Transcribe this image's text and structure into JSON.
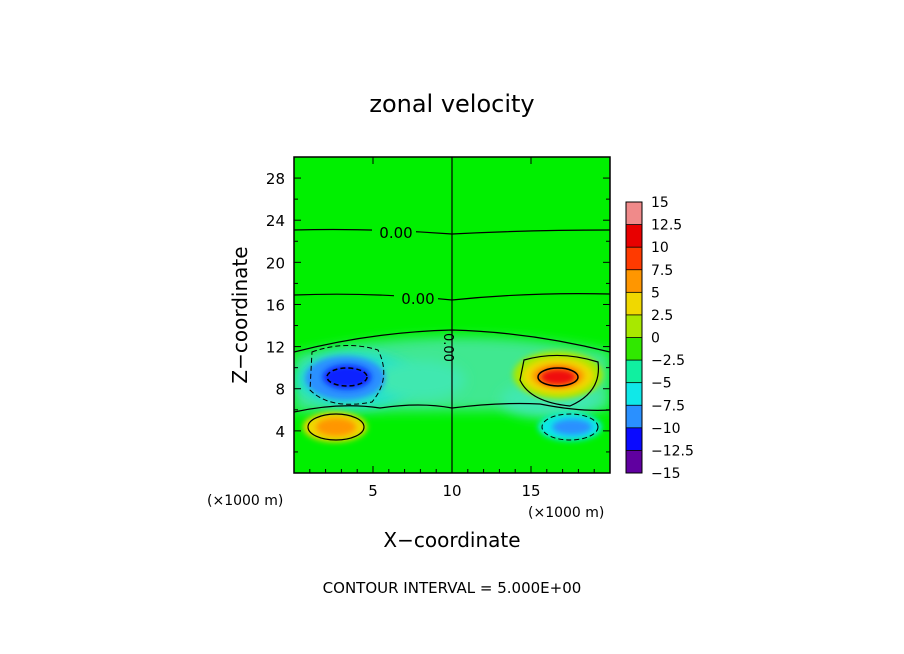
{
  "chart_data": {
    "type": "heatmap",
    "title": "zonal velocity",
    "xlabel": "X−coordinate",
    "ylabel": "Z−coordinate",
    "x_unit_left": "(×1000 m)",
    "x_unit_right": "(×1000 m)",
    "footer": "CONTOUR INTERVAL = 5.000E+00",
    "xlim": [
      0,
      20
    ],
    "ylim": [
      0,
      30
    ],
    "x_ticks": [
      5,
      10,
      15
    ],
    "y_ticks": [
      4,
      8,
      12,
      16,
      20,
      24,
      28
    ],
    "contour_levels_labeled": [
      "0.00",
      "0.00",
      "0.00"
    ],
    "colorbar": {
      "levels": [
        "15",
        "12.5",
        "10",
        "7.5",
        "5",
        "2.5",
        "0",
        "−2.5",
        "−5",
        "−7.5",
        "−10",
        "−12.5",
        "−15"
      ],
      "colors": [
        "#f08a8a",
        "#e80000",
        "#ff3a00",
        "#ff9600",
        "#f0d800",
        "#a8e800",
        "#30e800",
        "#10f0a0",
        "#10e8e8",
        "#2a90ff",
        "#0a0aff",
        "#2a0aa0",
        "#6000a0"
      ]
    },
    "features": [
      {
        "name": "negative core upper-left",
        "x": 3.5,
        "z": 9,
        "value": -12.5
      },
      {
        "name": "positive core lower-left",
        "x": 2.8,
        "z": 4.5,
        "value": 7.5
      },
      {
        "name": "positive core upper-right",
        "x": 16.8,
        "z": 9,
        "value": 12.5
      },
      {
        "name": "negative core lower-right",
        "x": 17.2,
        "z": 4.2,
        "value": -7.5
      }
    ]
  }
}
